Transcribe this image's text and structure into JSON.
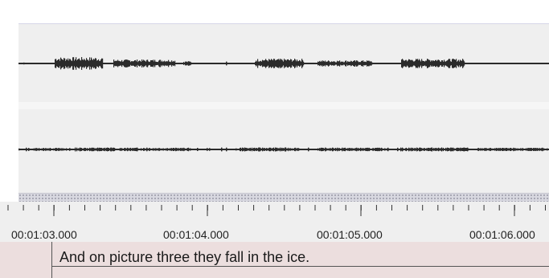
{
  "timeline": {
    "tick_labels": [
      "00:01:03.000",
      "00:01:04.000",
      "00:01:05.000",
      "00:01:06.000"
    ]
  },
  "annotation_tier": {
    "text": "And on picture three they fall in the ice."
  },
  "colors": {
    "track_background": "#efefef",
    "waveform": "#2b2b2b",
    "tier_background": "#ecdede"
  }
}
